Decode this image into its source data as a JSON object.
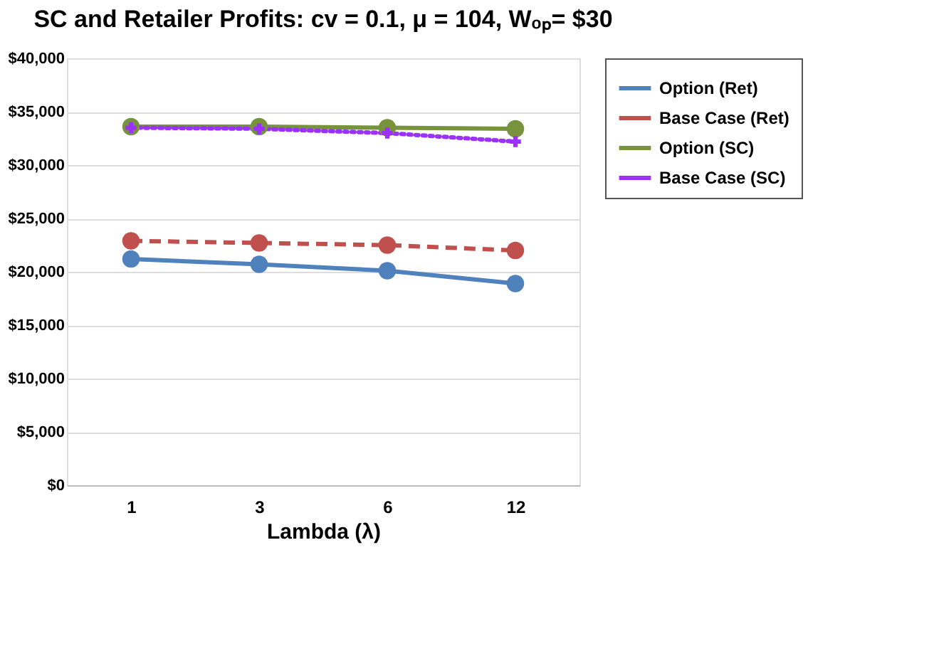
{
  "chart_data": {
    "type": "line",
    "title": "SC and Retailer Profits: cv = 0.1, μ = 104, Wₒₚ= $30",
    "xlabel": "Lambda (λ)",
    "categories": [
      "1",
      "3",
      "6",
      "12"
    ],
    "ylim": [
      0,
      40000
    ],
    "yticks": [
      {
        "value": 0,
        "label": "$0"
      },
      {
        "value": 5000,
        "label": "$5,000"
      },
      {
        "value": 10000,
        "label": "$10,000"
      },
      {
        "value": 15000,
        "label": "$15,000"
      },
      {
        "value": 20000,
        "label": "$20,000"
      },
      {
        "value": 25000,
        "label": "$25,000"
      },
      {
        "value": 30000,
        "label": "$30,000"
      },
      {
        "value": 35000,
        "label": "$35,000"
      },
      {
        "value": 40000,
        "label": "$40,000"
      }
    ],
    "grid": "y",
    "legend": "right",
    "series": [
      {
        "name": "Option (Ret)",
        "color": "#4f81bd",
        "values": [
          21200,
          20700,
          20100,
          18900
        ],
        "marker": "circle",
        "line_style": "solid"
      },
      {
        "name": "Base Case (Ret)",
        "color": "#c0504d",
        "values": [
          22900,
          22700,
          22500,
          22000
        ],
        "marker": "circle",
        "line_style": "dashed"
      },
      {
        "name": "Option (SC)",
        "color": "#77933c",
        "values": [
          33600,
          33600,
          33500,
          33400
        ],
        "marker": "circle",
        "line_style": "solid"
      },
      {
        "name": "Base Case (SC)",
        "color": "#9b30ff",
        "values": [
          33500,
          33400,
          33000,
          32200
        ],
        "marker": "cross",
        "line_style": "dotted"
      }
    ]
  }
}
